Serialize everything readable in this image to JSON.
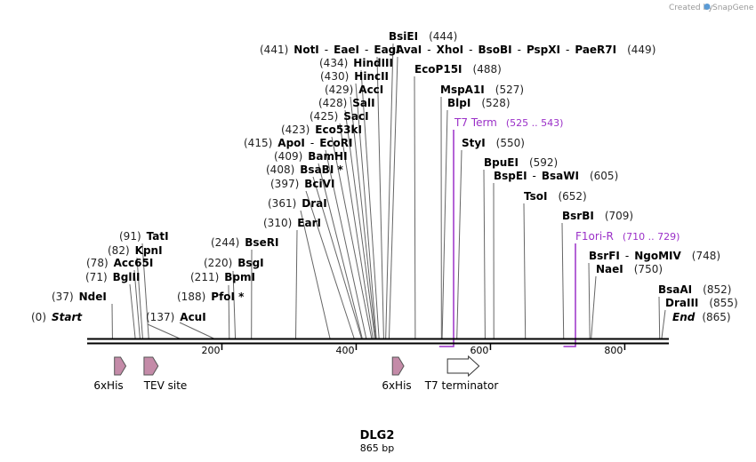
{
  "credit": {
    "prefix": "Created by",
    "brand": "SnapGene"
  },
  "title": "DLG2",
  "length_label": "865 bp",
  "sequence_length": 865,
  "ticks": [
    200,
    400,
    600,
    800
  ],
  "sites": [
    {
      "id": "start",
      "pos": 0,
      "num": "(0)",
      "parts": [
        "Start"
      ],
      "italic": true
    },
    {
      "id": "ndei",
      "pos": 37,
      "num": "(37)",
      "parts": [
        "NdeI"
      ]
    },
    {
      "id": "bglii",
      "pos": 71,
      "num": "(71)",
      "parts": [
        "BglII"
      ]
    },
    {
      "id": "acc65i",
      "pos": 78,
      "num": "(78)",
      "parts": [
        "Acc65I"
      ]
    },
    {
      "id": "kpni",
      "pos": 82,
      "num": "(82)",
      "parts": [
        "KpnI"
      ]
    },
    {
      "id": "tati",
      "pos": 91,
      "num": "(91)",
      "parts": [
        "TatI"
      ]
    },
    {
      "id": "acui",
      "pos": 137,
      "num": "(137)",
      "parts": [
        "AcuI"
      ]
    },
    {
      "id": "pfoi",
      "pos": 188,
      "num": "(188)",
      "parts": [
        "PfoI *"
      ]
    },
    {
      "id": "bpmi",
      "pos": 211,
      "num": "(211)",
      "parts": [
        "BpmI"
      ]
    },
    {
      "id": "bsgi",
      "pos": 220,
      "num": "(220)",
      "parts": [
        "BsgI"
      ]
    },
    {
      "id": "bseri",
      "pos": 244,
      "num": "(244)",
      "parts": [
        "BseRI"
      ]
    },
    {
      "id": "eari",
      "pos": 310,
      "num": "(310)",
      "parts": [
        "EarI"
      ]
    },
    {
      "id": "drai",
      "pos": 361,
      "num": "(361)",
      "parts": [
        "DraI"
      ]
    },
    {
      "id": "bcivi",
      "pos": 397,
      "num": "(397)",
      "parts": [
        "BciVI"
      ]
    },
    {
      "id": "bsabi",
      "pos": 408,
      "num": "(408)",
      "parts": [
        "BsaBI *"
      ]
    },
    {
      "id": "bamhi",
      "pos": 409,
      "num": "(409)",
      "parts": [
        "BamHI"
      ]
    },
    {
      "id": "apoi",
      "pos": 415,
      "num": "(415)",
      "parts": [
        "ApoI",
        "EcoRI"
      ]
    },
    {
      "id": "eco53ki",
      "pos": 423,
      "num": "(423)",
      "parts": [
        "Eco53kI"
      ]
    },
    {
      "id": "saci",
      "pos": 425,
      "num": "(425)",
      "parts": [
        "SacI"
      ]
    },
    {
      "id": "sali",
      "pos": 428,
      "num": "(428)",
      "parts": [
        "SalI"
      ]
    },
    {
      "id": "acci",
      "pos": 429,
      "num": "(429)",
      "parts": [
        "AccI"
      ]
    },
    {
      "id": "hincii",
      "pos": 430,
      "num": "(430)",
      "parts": [
        "HincII"
      ]
    },
    {
      "id": "hindiii",
      "pos": 434,
      "num": "(434)",
      "parts": [
        "HindIII"
      ]
    },
    {
      "id": "noti",
      "pos": 441,
      "num": "(441)",
      "parts": [
        "NotI",
        "EaeI",
        "EagI"
      ]
    },
    {
      "id": "bsiei",
      "pos": 444,
      "num": "(444)",
      "parts": [
        "BsiEI"
      ]
    },
    {
      "id": "avai",
      "pos": 449,
      "num": "(449)",
      "parts": [
        "AvaI",
        "XhoI",
        "BsoBI",
        "PspXI",
        "PaeR7I"
      ]
    },
    {
      "id": "ecop15i",
      "pos": 488,
      "num": "(488)",
      "parts": [
        "EcoP15I"
      ]
    },
    {
      "id": "mspa1i",
      "pos": 527,
      "num": "(527)",
      "parts": [
        "MspA1I"
      ]
    },
    {
      "id": "blpi",
      "pos": 528,
      "num": "(528)",
      "parts": [
        "BlpI"
      ]
    },
    {
      "id": "styi",
      "pos": 550,
      "num": "(550)",
      "parts": [
        "StyI"
      ]
    },
    {
      "id": "bpuei",
      "pos": 592,
      "num": "(592)",
      "parts": [
        "BpuEI"
      ]
    },
    {
      "id": "bspei",
      "pos": 605,
      "num": "(605)",
      "parts": [
        "BspEI",
        "BsaWI"
      ]
    },
    {
      "id": "tsoi",
      "pos": 652,
      "num": "(652)",
      "parts": [
        "TsoI"
      ]
    },
    {
      "id": "bsrbi",
      "pos": 709,
      "num": "(709)",
      "parts": [
        "BsrBI"
      ]
    },
    {
      "id": "bsrfi",
      "pos": 748,
      "num": "(748)",
      "parts": [
        "BsrFI",
        "NgoMIV"
      ]
    },
    {
      "id": "naei",
      "pos": 750,
      "num": "(750)",
      "parts": [
        "NaeI"
      ]
    },
    {
      "id": "bsaai",
      "pos": 852,
      "num": "(852)",
      "parts": [
        "BsaAI"
      ]
    },
    {
      "id": "draiii",
      "pos": 855,
      "num": "(855)",
      "parts": [
        "DraIII"
      ]
    },
    {
      "id": "end",
      "pos": 865,
      "num": "(865)",
      "parts": [
        "End"
      ],
      "italic": true
    }
  ],
  "primers": [
    {
      "id": "t7term",
      "name": "T7 Term",
      "range": "(525 .. 543)",
      "start": 525,
      "end": 543
    },
    {
      "id": "f1ori",
      "name": "F1ori-R",
      "range": "(710 .. 729)",
      "start": 710,
      "end": 729
    }
  ],
  "features": [
    {
      "id": "his1",
      "name": "6xHis",
      "start": 40,
      "end": 57,
      "kind": "tag"
    },
    {
      "id": "tev",
      "name": "TEV site",
      "start": 84,
      "end": 105,
      "kind": "tag"
    },
    {
      "id": "his2",
      "name": "6xHis",
      "start": 454,
      "end": 471,
      "kind": "tag"
    },
    {
      "id": "t7",
      "name": "T7 terminator",
      "start": 536,
      "end": 583,
      "kind": "terminator"
    }
  ],
  "colors": {
    "enzyme": "#000000",
    "primer": "#9b30c8",
    "feature": "#c48ba8",
    "terminator": "#ffffff"
  }
}
